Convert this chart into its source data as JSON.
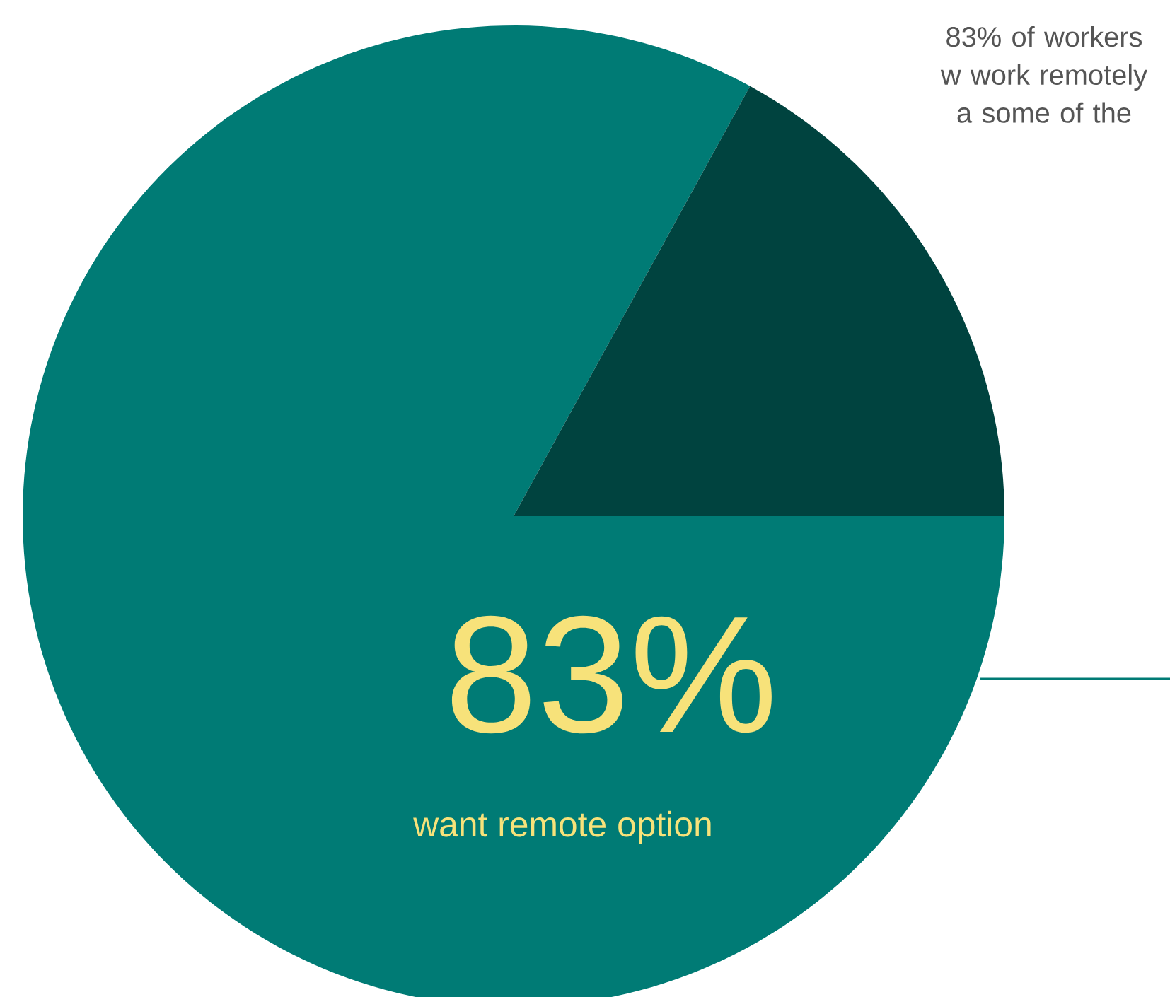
{
  "chart_data": {
    "type": "pie",
    "categories": [
      "want remote option",
      null
    ],
    "values": [
      83,
      17
    ],
    "colors": [
      "#007b75",
      "#00433f"
    ],
    "value_labels": [
      "83%",
      null
    ],
    "annotations": [
      "83% of workers w work remotely a some of the"
    ]
  }
}
